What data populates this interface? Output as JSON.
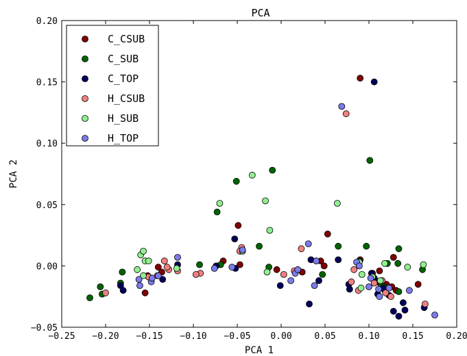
{
  "chart_data": {
    "type": "scatter",
    "title": "PCA",
    "xlabel": "PCA 1",
    "ylabel": "PCA 2",
    "xlim": [
      -0.25,
      0.2
    ],
    "ylim": [
      -0.05,
      0.2
    ],
    "xticks": [
      -0.25,
      -0.2,
      -0.15,
      -0.1,
      -0.05,
      0.0,
      0.05,
      0.1,
      0.15,
      0.2
    ],
    "xtick_labels": [
      "−0.25",
      "−0.20",
      "−0.15",
      "−0.10",
      "−0.05",
      "0.00",
      "0.05",
      "0.10",
      "0.15",
      "0.20"
    ],
    "yticks": [
      -0.05,
      0.0,
      0.05,
      0.1,
      0.15,
      0.2
    ],
    "ytick_labels": [
      "−0.05",
      "0.00",
      "0.05",
      "0.10",
      "0.15",
      "0.20"
    ],
    "grid": false,
    "legend_position": "top-left",
    "series": [
      {
        "name": "C_CSUB",
        "color": "#800000",
        "points": [
          [
            0.09,
            0.153
          ],
          [
            -0.049,
            0.033
          ],
          [
            0.053,
            0.026
          ],
          [
            -0.066,
            0.004
          ],
          [
            -0.047,
            0.001
          ],
          [
            -0.14,
            -0.001
          ],
          [
            -0.136,
            -0.005
          ],
          [
            -0.152,
            -0.008
          ],
          [
            -0.155,
            -0.022
          ],
          [
            -0.005,
            -0.003
          ],
          [
            0.024,
            -0.005
          ],
          [
            0.045,
            0.004
          ],
          [
            0.049,
            0.0
          ],
          [
            0.09,
            0.005
          ],
          [
            0.12,
            -0.015
          ],
          [
            0.126,
            -0.017
          ],
          [
            0.131,
            -0.02
          ],
          [
            0.112,
            -0.004
          ],
          [
            0.128,
            0.007
          ],
          [
            0.156,
            -0.015
          ],
          [
            0.11,
            -0.013
          ],
          [
            0.104,
            -0.006
          ],
          [
            0.118,
            -0.02
          ]
        ]
      },
      {
        "name": "C_SUB",
        "color": "#006400",
        "points": [
          [
            0.101,
            0.086
          ],
          [
            -0.01,
            0.078
          ],
          [
            -0.051,
            0.069
          ],
          [
            -0.073,
            0.044
          ],
          [
            -0.218,
            -0.026
          ],
          [
            -0.204,
            -0.023
          ],
          [
            -0.206,
            -0.017
          ],
          [
            -0.181,
            -0.005
          ],
          [
            -0.183,
            -0.014
          ],
          [
            -0.093,
            0.001
          ],
          [
            -0.069,
            0.001
          ],
          [
            -0.025,
            0.016
          ],
          [
            -0.014,
            -0.001
          ],
          [
            0.047,
            -0.007
          ],
          [
            0.065,
            0.016
          ],
          [
            0.097,
            0.016
          ],
          [
            0.134,
            0.014
          ],
          [
            0.133,
            0.002
          ],
          [
            0.121,
            0.002
          ],
          [
            0.134,
            -0.021
          ],
          [
            0.161,
            -0.003
          ],
          [
            0.117,
            -0.017
          ],
          [
            0.089,
            0.004
          ],
          [
            0.114,
            -0.016
          ]
        ]
      },
      {
        "name": "C_TOP",
        "color": "#00005a",
        "points": [
          [
            0.106,
            0.15
          ],
          [
            -0.053,
            0.022
          ],
          [
            -0.074,
            0.0
          ],
          [
            -0.052,
            -0.002
          ],
          [
            -0.183,
            -0.016
          ],
          [
            -0.18,
            -0.02
          ],
          [
            -0.151,
            -0.009
          ],
          [
            -0.135,
            -0.011
          ],
          [
            -0.118,
            0.001
          ],
          [
            -0.001,
            -0.016
          ],
          [
            0.032,
            -0.031
          ],
          [
            0.034,
            0.005
          ],
          [
            0.043,
            -0.012
          ],
          [
            0.065,
            0.005
          ],
          [
            0.077,
            -0.015
          ],
          [
            0.078,
            -0.019
          ],
          [
            0.106,
            -0.01
          ],
          [
            0.11,
            -0.023
          ],
          [
            0.116,
            -0.018
          ],
          [
            0.128,
            -0.037
          ],
          [
            0.134,
            -0.041
          ],
          [
            0.139,
            -0.03
          ],
          [
            0.141,
            -0.036
          ],
          [
            0.163,
            -0.034
          ],
          [
            0.103,
            -0.006
          ],
          [
            0.123,
            -0.024
          ]
        ]
      },
      {
        "name": "H_CSUB",
        "color": "#f08080",
        "points": [
          [
            0.074,
            0.124
          ],
          [
            -0.045,
            0.015
          ],
          [
            -0.047,
            0.012
          ],
          [
            -0.092,
            -0.006
          ],
          [
            -0.097,
            -0.007
          ],
          [
            -0.118,
            -0.004
          ],
          [
            -0.128,
            -0.003
          ],
          [
            -0.133,
            0.004
          ],
          [
            -0.13,
            -0.001
          ],
          [
            -0.141,
            -0.008
          ],
          [
            -0.2,
            -0.022
          ],
          [
            -0.151,
            -0.009
          ],
          [
            0.003,
            -0.007
          ],
          [
            0.015,
            -0.004
          ],
          [
            0.023,
            0.014
          ],
          [
            0.04,
            0.004
          ],
          [
            0.083,
            -0.003
          ],
          [
            0.088,
            -0.02
          ],
          [
            0.08,
            -0.013
          ],
          [
            0.119,
            -0.022
          ],
          [
            0.125,
            -0.025
          ],
          [
            0.164,
            -0.031
          ],
          [
            0.115,
            -0.012
          ],
          [
            0.106,
            -0.014
          ]
        ]
      },
      {
        "name": "H_SUB",
        "color": "#90ee90",
        "points": [
          [
            -0.033,
            0.074
          ],
          [
            -0.07,
            0.051
          ],
          [
            -0.018,
            0.053
          ],
          [
            0.064,
            0.051
          ],
          [
            -0.044,
            0.012
          ],
          [
            -0.013,
            0.029
          ],
          [
            -0.016,
            -0.005
          ],
          [
            -0.16,
            0.009
          ],
          [
            -0.157,
            0.012
          ],
          [
            -0.155,
            0.004
          ],
          [
            -0.151,
            0.004
          ],
          [
            -0.164,
            -0.003
          ],
          [
            -0.157,
            -0.008
          ],
          [
            -0.119,
            -0.002
          ],
          [
            0.089,
            0.003
          ],
          [
            0.092,
            -0.007
          ],
          [
            0.091,
            -0.018
          ],
          [
            0.113,
            -0.012
          ],
          [
            0.118,
            0.002
          ],
          [
            0.144,
            -0.001
          ],
          [
            0.162,
            0.001
          ],
          [
            0.104,
            -0.009
          ]
        ]
      },
      {
        "name": "H_TOP",
        "color": "#7b7bea",
        "points": [
          [
            0.069,
            0.13
          ],
          [
            -0.044,
            0.013
          ],
          [
            -0.056,
            -0.001
          ],
          [
            -0.076,
            -0.002
          ],
          [
            -0.162,
            -0.011
          ],
          [
            -0.161,
            -0.016
          ],
          [
            -0.148,
            -0.013
          ],
          [
            -0.147,
            -0.01
          ],
          [
            -0.14,
            -0.008
          ],
          [
            -0.118,
            0.007
          ],
          [
            0.011,
            -0.012
          ],
          [
            0.016,
            -0.006
          ],
          [
            0.019,
            -0.003
          ],
          [
            0.031,
            0.018
          ],
          [
            0.038,
            -0.016
          ],
          [
            0.04,
            0.004
          ],
          [
            0.086,
            0.003
          ],
          [
            0.089,
            0.0
          ],
          [
            0.1,
            -0.017
          ],
          [
            0.102,
            -0.01
          ],
          [
            0.112,
            -0.025
          ],
          [
            0.111,
            -0.019
          ],
          [
            0.146,
            -0.02
          ],
          [
            0.175,
            -0.04
          ],
          [
            0.123,
            -0.018
          ]
        ]
      }
    ]
  }
}
